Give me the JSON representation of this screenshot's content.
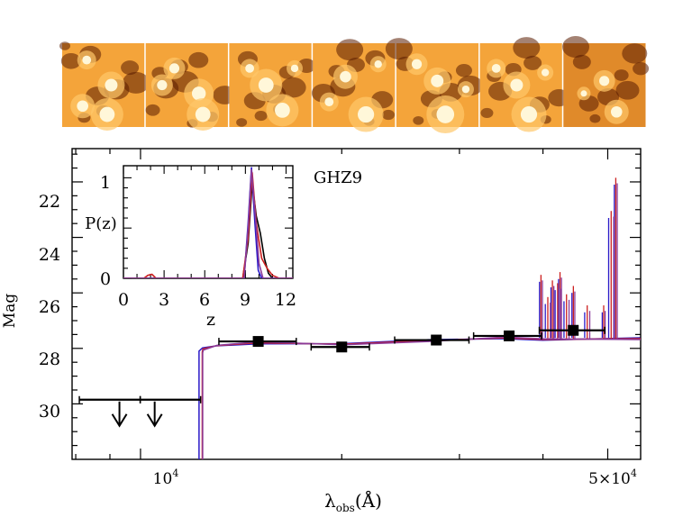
{
  "chart_data": [
    {
      "type": "line",
      "title": "GHZ9",
      "xlabel_main": "λ",
      "xlabel_sub": "obs",
      "xlabel_unit": "(Å)",
      "ylabel": "Mag",
      "x_scale": "log",
      "xlim": [
        7900,
        56000
      ],
      "ylim": [
        32,
        20.8
      ],
      "y_inverted": true,
      "y_ticks": [
        22,
        24,
        26,
        28,
        30
      ],
      "y_tick_labels": [
        "22",
        "24",
        "26",
        "28",
        "30"
      ],
      "x_tick_labels": [
        {
          "value": 10000,
          "base": "10",
          "exp": "4"
        },
        {
          "value": 50000,
          "base": "5×10",
          "exp": "4"
        }
      ],
      "photometry": [
        {
          "lambda": 9000,
          "mag": 29.85,
          "lam_lo": 8100,
          "lam_hi": 9990,
          "upper_limit": true,
          "arrow_lambda": 9300
        },
        {
          "lambda": 11000,
          "mag": 29.85,
          "lam_lo": 9990,
          "lam_hi": 12300,
          "upper_limit": true,
          "arrow_lambda": 10500
        },
        {
          "lambda": 15000,
          "mag": 27.75,
          "lam_lo": 13100,
          "lam_hi": 17100
        },
        {
          "lambda": 20000,
          "mag": 27.95,
          "lam_lo": 18000,
          "lam_hi": 22000
        },
        {
          "lambda": 27700,
          "mag": 27.7,
          "lam_lo": 24000,
          "lam_hi": 31000
        },
        {
          "lambda": 35600,
          "mag": 27.55,
          "lam_lo": 31500,
          "lam_hi": 39800
        },
        {
          "lambda": 44400,
          "mag": 27.35,
          "lam_lo": 39500,
          "lam_hi": 49500
        }
      ],
      "series": [
        {
          "name": "model-blue",
          "color": "#2a1ac8",
          "break_lambda": 12290
        },
        {
          "name": "model-red",
          "color": "#cc1f1f",
          "break_lambda": 12370
        },
        {
          "name": "model-purple",
          "color": "#8a3a9a",
          "break_lambda": 12330
        }
      ],
      "continuum_lambda": [
        12300,
        12400,
        13000,
        15000,
        20000,
        27000,
        35000,
        40000,
        56000
      ],
      "continuum_mag": [
        28.1,
        28.02,
        27.9,
        27.8,
        27.85,
        27.72,
        27.62,
        27.68,
        27.65
      ],
      "emission_lines": [
        {
          "lambda": 39800,
          "mag": 25.5
        },
        {
          "lambda": 40600,
          "mag": 26.3
        },
        {
          "lambda": 41400,
          "mag": 25.7
        },
        {
          "lambda": 42000,
          "mag": 25.8
        },
        {
          "lambda": 42500,
          "mag": 25.4
        },
        {
          "lambda": 43300,
          "mag": 26.2
        },
        {
          "lambda": 44500,
          "mag": 25.9
        },
        {
          "lambda": 46500,
          "mag": 26.6
        },
        {
          "lambda": 49400,
          "mag": 26.6
        },
        {
          "lambda": 50500,
          "mag": 23.2
        },
        {
          "lambda": 51500,
          "mag": 22.0
        }
      ]
    },
    {
      "type": "line",
      "title": "",
      "xlabel": "z",
      "ylabel": "P(z)",
      "xlim": [
        0,
        12.5
      ],
      "ylim": [
        0,
        1.12
      ],
      "x_ticks": [
        0,
        3,
        6,
        9,
        12
      ],
      "x_tick_labels": [
        "0",
        "3",
        "6",
        "9",
        "12"
      ],
      "y_ticks": [
        0,
        1
      ],
      "y_tick_labels": [
        "0",
        "1"
      ],
      "series": [
        {
          "name": "pz-black",
          "color": "#000000",
          "x": [
            0,
            8.8,
            9.2,
            9.5,
            9.8,
            10.1,
            10.4,
            10.7,
            11.0,
            12.5
          ],
          "y": [
            0,
            0,
            0.35,
            0.95,
            0.62,
            0.45,
            0.2,
            0.05,
            0,
            0
          ]
        },
        {
          "name": "pz-blue",
          "color": "#2a1ac8",
          "x": [
            0,
            8.9,
            9.2,
            9.45,
            9.7,
            9.95,
            10.2,
            12.5
          ],
          "y": [
            0,
            0,
            0.55,
            1.1,
            0.55,
            0.08,
            0,
            0
          ]
        },
        {
          "name": "pz-red",
          "color": "#cc1f1f",
          "x": [
            0,
            1.5,
            1.8,
            2.1,
            2.4,
            8.8,
            9.2,
            9.5,
            9.8,
            10.2,
            10.6,
            11.0,
            11.5,
            12.5
          ],
          "y": [
            0,
            0,
            0.03,
            0.04,
            0,
            0,
            0.4,
            1.05,
            0.55,
            0.2,
            0.1,
            0.03,
            0,
            0
          ]
        },
        {
          "name": "pz-purple",
          "color": "#8a3a9a",
          "x": [
            0,
            8.9,
            9.2,
            9.45,
            9.75,
            10.0,
            10.3,
            12.5
          ],
          "y": [
            0,
            0,
            0.5,
            1.08,
            0.6,
            0.15,
            0,
            0
          ]
        }
      ]
    }
  ],
  "stamps": {
    "count": 7,
    "color_warm": "#f4a43a",
    "color_dark": "#5a1b00",
    "color_bright": "#fff7d9"
  }
}
